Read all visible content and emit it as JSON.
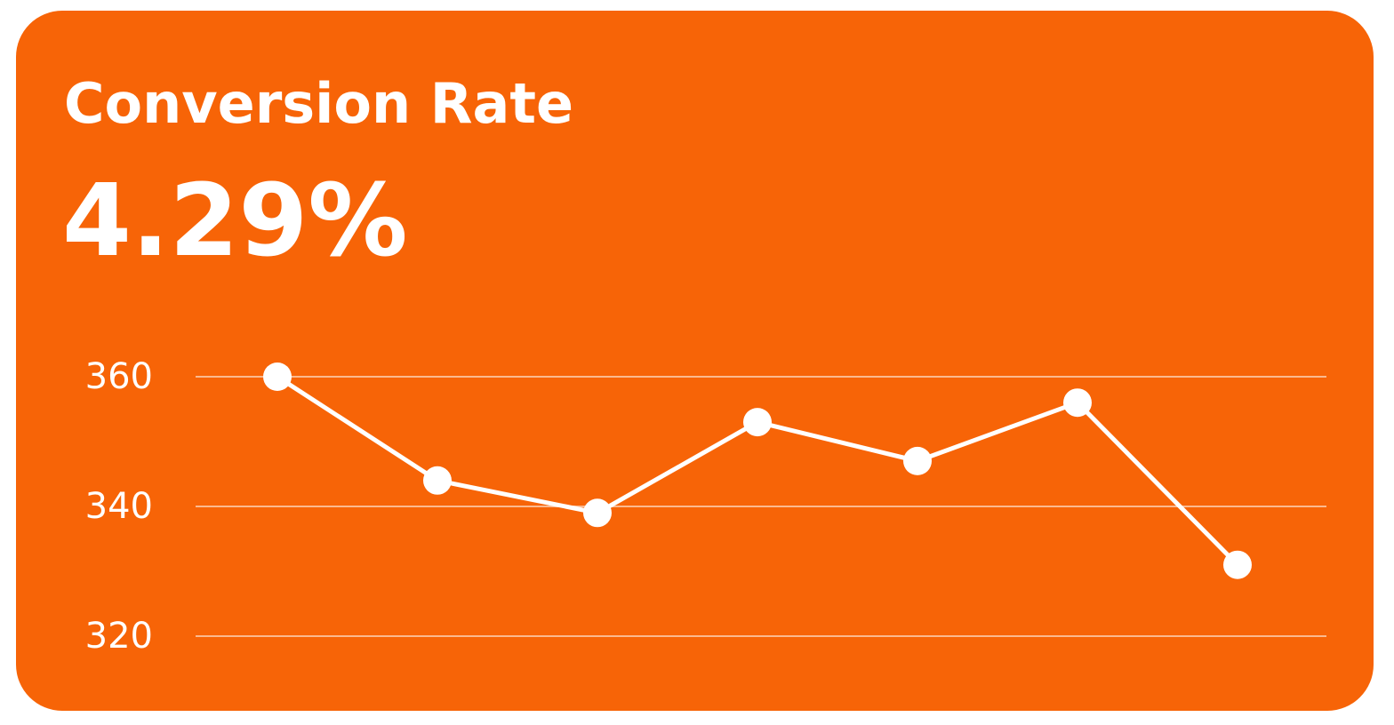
{
  "chart_data": {
    "type": "line",
    "title": "Conversion Rate",
    "subtitle": "4.29%",
    "categories": [
      null,
      null,
      null,
      null,
      null,
      null,
      null
    ],
    "values": [
      360,
      344,
      339,
      353,
      347,
      356,
      331
    ],
    "color": "#ffffff",
    "background": "#f76407",
    "ylim": [
      320,
      360
    ],
    "yticks": [
      320,
      340,
      360
    ],
    "grid": true
  }
}
